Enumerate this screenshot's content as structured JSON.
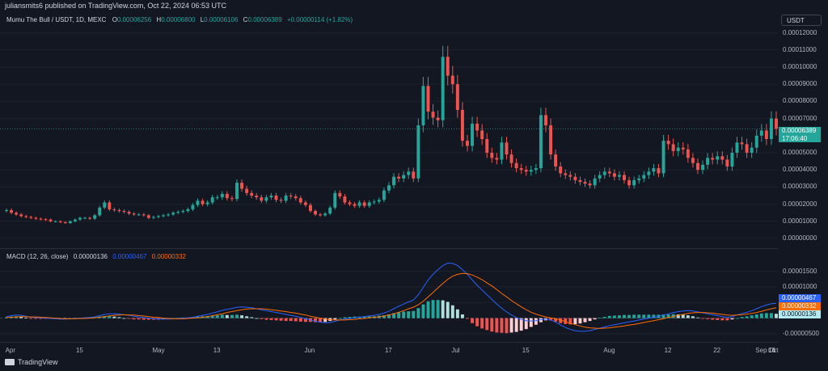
{
  "header": {
    "text": "juliansmits6 published on TradingView.com, Oct 22, 2024 06:53 UTC"
  },
  "legend": {
    "symbol": "Mumu The Bull / USDT, 1D, MEXC",
    "o_key": "O",
    "o": "0.00006256",
    "h_key": "H",
    "h": "0.00006800",
    "l_key": "L",
    "l": "0.00006106",
    "c_key": "C",
    "c": "0.00006389",
    "change": "+0.00000114 (+1.82%)"
  },
  "currency": "USDT",
  "price_axis": [
    "0.00012000",
    "0.00011000",
    "0.00010000",
    "0.00009000",
    "0.00008000",
    "0.00007000",
    "0.00005000",
    "0.00004000",
    "0.00003000",
    "0.00002000",
    "0.00001000",
    "0.00000000"
  ],
  "price_tag": {
    "price": "0.00006389",
    "countdown": "17:06:40"
  },
  "macd": {
    "label": "MACD (12, 26, close)",
    "hist": "0.00000136",
    "macd": "0.00000467",
    "signal": "0.00000332"
  },
  "macd_axis": [
    "0.00001500",
    "0.00001000",
    "0.00000500",
    "-0.00000500"
  ],
  "macd_tags": {
    "macd": "0.00000467",
    "signal": "0.00000332",
    "hist": "0.00000136"
  },
  "x_axis": [
    "Apr",
    "15",
    "May",
    "13",
    "Jun",
    "17",
    "Jul",
    "15",
    "Aug",
    "12",
    "22",
    "Sep",
    "16",
    "Oct",
    "14"
  ],
  "footer": {
    "brand": "TradingView"
  },
  "colors": {
    "up": "#26a69a",
    "down": "#ef5350",
    "macd": "#2962ff",
    "signal": "#ff6d00",
    "bg": "#131722"
  },
  "chart_data": {
    "type": "candlestick",
    "interval": "1D",
    "y_range": [
      0,
      0.000125
    ],
    "macd_range": [
      -6.3e-06,
      1.85e-05
    ],
    "first_date": "2024-03-31",
    "close": [
      1.65e-05,
      1.5e-05,
      1.4e-05,
      1.3e-05,
      1.25e-05,
      1.2e-05,
      1.15e-05,
      1.12e-05,
      1.1e-05,
      1e-05,
      1e-05,
      9.5e-06,
      9e-06,
      1e-05,
      1.1e-05,
      1.2e-05,
      1.2e-05,
      1.15e-05,
      1.35e-05,
      1.8e-05,
      2.1e-05,
      1.7e-05,
      1.65e-05,
      1.6e-05,
      1.55e-05,
      1.45e-05,
      1.4e-05,
      1.4e-05,
      1.35e-05,
      1.2e-05,
      1.25e-05,
      1.3e-05,
      1.35e-05,
      1.4e-05,
      1.5e-05,
      1.55e-05,
      1.6e-05,
      1.7e-05,
      1.95e-05,
      2.2e-05,
      2e-05,
      2.1e-05,
      2.4e-05,
      2.4e-05,
      2.6e-05,
      2.35e-05,
      2.3e-05,
      3.25e-05,
      2.9e-05,
      2.65e-05,
      2.5e-05,
      2.4e-05,
      2.2e-05,
      2.4e-05,
      2.5e-05,
      2.25e-05,
      2.2e-05,
      2.5e-05,
      2.45e-05,
      2.35e-05,
      2.1e-05,
      1.95e-05,
      1.6e-05,
      1.4e-05,
      1.35e-05,
      1.45e-05,
      1.8e-05,
      2.65e-05,
      2.45e-05,
      2.1e-05,
      2e-05,
      1.9e-05,
      2.1e-05,
      1.9e-05,
      2.1e-05,
      2.15e-05,
      2.25e-05,
      2.8e-05,
      3.1e-05,
      3.6e-05,
      3.5e-05,
      3.7e-05,
      3.9e-05,
      3.5e-05,
      6.6e-05,
      8.9e-05,
      7.4e-05,
      7.05e-05,
      6.9e-05,
      0.000106,
      9.5e-05,
      9e-05,
      7.5e-05,
      5.7e-05,
      5.4e-05,
      6.7e-05,
      6.3e-05,
      5.8e-05,
      5e-05,
      4.7e-05,
      4.6e-05,
      5.6e-05,
      4.9e-05,
      4.4e-05,
      4.1e-05,
      4e-05,
      3.9e-05,
      4e-05,
      4.1e-05,
      7.2e-05,
      6.6e-05,
      4.9e-05,
      4.2e-05,
      3.8e-05,
      3.7e-05,
      3.6e-05,
      3.4e-05,
      3.3e-05,
      3.2e-05,
      3.1e-05,
      3.5e-05,
      3.7e-05,
      3.9e-05,
      3.8e-05,
      3.6e-05,
      3.7e-05,
      3.4e-05,
      3.1e-05,
      3.4e-05,
      3.5e-05,
      3.7e-05,
      3.9e-05,
      4.1e-05,
      3.8e-05,
      5.7e-05,
      5.5e-05,
      5.1e-05,
      5.3e-05,
      5.2e-05,
      4.7e-05,
      4.4e-05,
      4e-05,
      4.3e-05,
      4.7e-05,
      4.6e-05,
      4.8e-05,
      4.6e-05,
      4.2e-05,
      5e-05,
      5.6e-05,
      5.5e-05,
      5e-05,
      5.3e-05,
      6e-05,
      6.3e-05,
      5.8e-05,
      7e-05,
      6.4e-05
    ],
    "macd_values": [
      5e-07,
      8e-07,
      1e-06,
      9e-07,
      6e-07,
      3e-07,
      2e-07,
      1e-07,
      0.0,
      -1e-07,
      -2e-07,
      -3e-07,
      -3e-07,
      -2e-07,
      -1e-07,
      0.0,
      1e-07,
      2e-07,
      4e-07,
      8e-07,
      1.2e-06,
      1.4e-06,
      1.4e-06,
      1.3e-06,
      1.1e-06,
      9e-07,
      6e-07,
      4e-07,
      2e-07,
      0.0,
      -2e-07,
      -3e-07,
      -3e-07,
      -3e-07,
      -2e-07,
      -1e-07,
      0.0,
      1e-07,
      3e-07,
      6e-07,
      9e-07,
      1.2e-06,
      1.6e-06,
      2e-06,
      2.5e-06,
      2.8e-06,
      3.1e-06,
      3.5e-06,
      3.6e-06,
      3.5e-06,
      3.3e-06,
      3e-06,
      2.7e-06,
      2.4e-06,
      2.1e-06,
      1.8e-06,
      1.5e-06,
      1.2e-06,
      9e-07,
      6e-07,
      2e-07,
      -2e-07,
      -6e-07,
      -1e-06,
      -1.3e-06,
      -1.5e-06,
      -1.4e-06,
      -1e-06,
      -6e-07,
      -3e-07,
      -1e-07,
      1e-07,
      3e-07,
      5e-07,
      7e-07,
      9e-07,
      1.2e-06,
      1.6e-06,
      2.2e-06,
      3e-06,
      3.8e-06,
      4.5e-06,
      5.2e-06,
      5.8e-06,
      7.5e-06,
      9.8e-06,
      1.22e-05,
      1.4e-05,
      1.55e-05,
      1.68e-05,
      1.76e-05,
      1.75e-05,
      1.68e-05,
      1.55e-05,
      1.4e-05,
      1.22e-05,
      1.05e-05,
      9e-06,
      7.5e-06,
      6e-06,
      4.5e-06,
      3.2e-06,
      2e-06,
      1e-06,
      2e-07,
      -4e-07,
      -8e-07,
      -9e-07,
      -8e-07,
      -5e-07,
      -3e-07,
      -6e-07,
      -1.3e-06,
      -2.2e-06,
      -3e-06,
      -3.6e-06,
      -4e-06,
      -4.2e-06,
      -4.2e-06,
      -4e-06,
      -3.6e-06,
      -3.2e-06,
      -2.8e-06,
      -2.4e-06,
      -2.1e-06,
      -1.8e-06,
      -1.5e-06,
      -1.2e-06,
      -9e-07,
      -6e-07,
      -3e-07,
      0.0,
      3e-07,
      6e-07,
      1e-06,
      1.4e-06,
      1.8e-06,
      2.1e-06,
      2.3e-06,
      2.4e-06,
      2.3e-06,
      2e-06,
      1.7e-06,
      1.4e-06,
      1.1e-06,
      8e-07,
      5e-07,
      3e-07,
      5e-07,
      1e-06,
      1.5e-06,
      1.9e-06,
      2.4e-06,
      3e-06,
      3.7e-06,
      4.2e-06,
      4.6e-06,
      4.7e-06
    ],
    "signal_values": [
      2e-07,
      3e-07,
      4e-07,
      5e-07,
      5e-07,
      4e-07,
      4e-07,
      3e-07,
      2e-07,
      1e-07,
      0.0,
      -1e-07,
      -2e-07,
      -2e-07,
      -2e-07,
      -1e-07,
      -1e-07,
      0.0,
      1e-07,
      3e-07,
      5e-07,
      7e-07,
      9e-07,
      1e-06,
      1.1e-06,
      1e-06,
      1e-06,
      8e-07,
      7e-07,
      5e-07,
      3e-07,
      2e-07,
      0.0,
      -1e-07,
      -2e-07,
      -2e-07,
      -2e-07,
      -1e-07,
      0.0,
      1e-07,
      3e-07,
      5e-07,
      8e-07,
      1.1e-06,
      1.4e-06,
      1.8e-06,
      2.1e-06,
      2.4e-06,
      2.7e-06,
      2.9e-06,
      3e-06,
      3e-06,
      3e-06,
      2.9e-06,
      2.7e-06,
      2.5e-06,
      2.3e-06,
      2.1e-06,
      1.8e-06,
      1.6e-06,
      1.3e-06,
      1e-06,
      6e-07,
      3e-07,
      0.0,
      -3e-07,
      -5e-07,
      -6e-07,
      -6e-07,
      -6e-07,
      -5e-07,
      -4e-07,
      -2e-07,
      -1e-07,
      1e-07,
      3e-07,
      4e-07,
      7e-07,
      1e-06,
      1.4e-06,
      1.9e-06,
      2.4e-06,
      3e-06,
      3.5e-06,
      4.3e-06,
      5.4e-06,
      6.8e-06,
      8.2e-06,
      9.7e-06,
      1.11e-05,
      1.24e-05,
      1.34e-05,
      1.4e-05,
      1.43e-05,
      1.42e-05,
      1.38e-05,
      1.31e-05,
      1.23e-05,
      1.13e-05,
      1.03e-05,
      9.1e-06,
      7.9e-06,
      6.8e-06,
      5.6e-06,
      4.6e-06,
      3.6e-06,
      2.7e-06,
      1.9e-06,
      1.3e-06,
      8e-07,
      4e-07,
      1e-07,
      -2e-07,
      -6e-07,
      -1.1e-06,
      -1.6e-06,
      -2.1e-06,
      -2.5e-06,
      -2.9e-06,
      -3.1e-06,
      -3.2e-06,
      -3.3e-06,
      -3.2e-06,
      -3.1e-06,
      -2.9e-06,
      -2.7e-06,
      -2.5e-06,
      -2.2e-06,
      -2e-06,
      -1.7e-06,
      -1.4e-06,
      -1.1e-06,
      -8e-07,
      -5e-07,
      -2e-07,
      2e-07,
      5e-07,
      9e-07,
      1.2e-06,
      1.5e-06,
      1.7e-06,
      1.8e-06,
      1.8e-06,
      1.7e-06,
      1.6e-06,
      1.4e-06,
      1.2e-06,
      1e-06,
      9e-07,
      1e-06,
      1.1e-06,
      1.3e-06,
      1.5e-06,
      1.8e-06,
      2.2e-06,
      2.6e-06,
      3e-06,
      3.3e-06
    ]
  }
}
